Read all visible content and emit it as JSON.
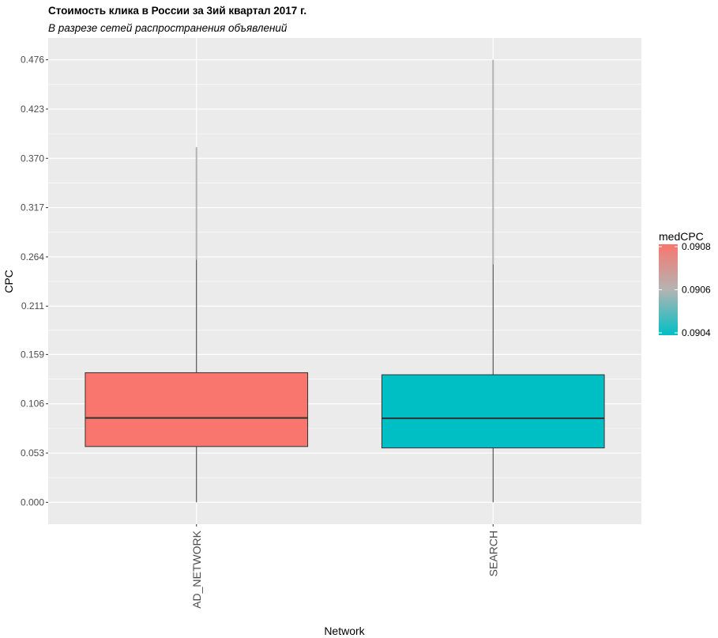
{
  "chart_data": {
    "type": "boxplot",
    "title": "Стоимость клика в России за 3ий квартал 2017 г.",
    "subtitle": "В разрезе сетей распространения объявлений",
    "xlabel": "Network",
    "ylabel": "CPC",
    "categories": [
      "AD_NETWORK",
      "SEARCH"
    ],
    "boxes": [
      {
        "category": "AD_NETWORK",
        "whisker_low": 0.0,
        "q1": 0.06,
        "median": 0.0908,
        "q3": 0.1394,
        "whisker_high": 0.261,
        "outlier_max": 0.382,
        "fill": "#F8766D"
      },
      {
        "category": "SEARCH",
        "whisker_low": 0.0,
        "q1": 0.0585,
        "median": 0.0904,
        "q3": 0.1372,
        "whisker_high": 0.256,
        "outlier_max": 0.476,
        "fill": "#00BFC4"
      }
    ],
    "y_ticks": [
      "0.000",
      "0.053",
      "0.106",
      "0.159",
      "0.211",
      "0.264",
      "0.317",
      "0.370",
      "0.423",
      "0.476"
    ],
    "y_tick_values": [
      0.0,
      0.053,
      0.106,
      0.159,
      0.211,
      0.264,
      0.317,
      0.37,
      0.423,
      0.476
    ],
    "ylim": [
      -0.0235,
      0.4995
    ],
    "grid": true,
    "legend": {
      "title": "medCPC",
      "position": "right",
      "ticks": [
        "0.0904",
        "0.0906",
        "0.0908"
      ],
      "tick_values": [
        0.0904,
        0.0906,
        0.0908
      ],
      "range": [
        0.0904,
        0.0908
      ],
      "color_low": "#00BFC4",
      "color_high": "#F8766D"
    }
  }
}
